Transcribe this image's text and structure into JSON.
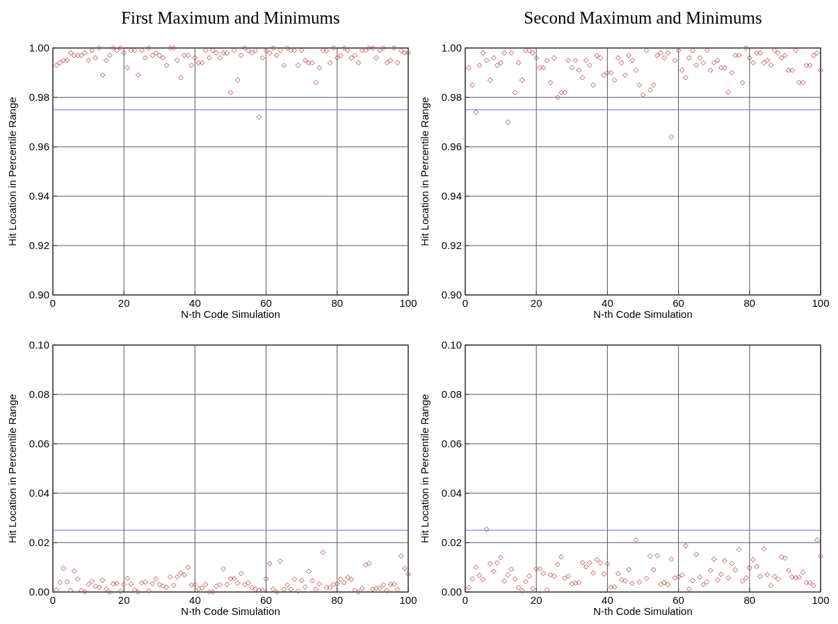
{
  "chart_data": [
    {
      "type": "scatter",
      "title": "First Maximum and Minimums",
      "xlabel": "N-th Code Simulation",
      "ylabel": "Hit Location in Percentile Range",
      "xlim": [
        0,
        100
      ],
      "xticks": [
        0,
        20,
        40,
        60,
        80,
        100
      ],
      "ylim": [
        0.9,
        1.0
      ],
      "yticks": [
        {
          "value": 0.9,
          "label": "0.90"
        },
        0.92,
        0.94,
        0.96,
        0.98,
        {
          "value": 1.0,
          "label": "1.00"
        }
      ],
      "grid": true,
      "marker": "diamond",
      "ref_lines": [
        {
          "axis": "y",
          "value": 0.975,
          "color": "#6b6bff"
        }
      ],
      "series": [
        {
          "color": "#c0504d",
          "x": [
            1,
            2,
            3,
            4,
            5,
            6,
            7,
            8,
            9,
            10,
            11,
            12,
            13,
            14,
            15,
            16,
            17,
            18,
            19,
            20,
            21,
            22,
            23,
            24,
            25,
            26,
            27,
            28,
            29,
            30,
            31,
            32,
            33,
            34,
            35,
            36,
            37,
            38,
            39,
            40,
            41,
            42,
            43,
            44,
            45,
            46,
            47,
            48,
            49,
            50,
            51,
            52,
            53,
            54,
            55,
            56,
            57,
            58,
            59,
            60,
            61,
            62,
            63,
            64,
            65,
            66,
            67,
            68,
            69,
            70,
            71,
            72,
            73,
            74,
            75,
            76,
            77,
            78,
            79,
            80,
            81,
            82,
            83,
            84,
            85,
            86,
            87,
            88,
            89,
            90,
            91,
            92,
            93,
            94,
            95,
            96,
            97,
            98,
            99,
            100
          ],
          "values": [
            0.993,
            0.994,
            0.995,
            0.995,
            0.998,
            0.997,
            0.997,
            0.997,
            0.998,
            0.995,
            0.999,
            0.996,
            1.0,
            0.989,
            0.995,
            0.997,
            1.0,
            0.999,
            1.0,
            0.998,
            0.992,
            0.999,
            0.999,
            0.989,
            0.999,
            0.996,
            1.0,
            0.997,
            0.998,
            0.997,
            0.996,
            0.993,
            1.0,
            1.0,
            0.995,
            0.988,
            0.997,
            0.997,
            0.993,
            0.996,
            0.994,
            0.994,
            0.999,
            0.996,
            0.999,
            0.998,
            0.996,
            0.998,
            0.998,
            0.982,
            0.999,
            0.987,
            0.997,
            1.0,
            0.999,
            0.998,
            0.999,
            0.972,
            0.996,
            0.999,
            0.998,
            1.0,
            0.997,
            0.999,
            0.993,
            1.0,
            0.999,
            0.999,
            0.993,
            0.999,
            0.995,
            0.994,
            0.994,
            0.986,
            0.992,
            0.999,
            0.999,
            0.994,
            1.0,
            0.996,
            0.997,
            1.0,
            0.999,
            0.996,
            0.997,
            0.994,
            0.999,
            0.999,
            1.0,
            1.0,
            0.996,
            0.999,
            1.0,
            0.994,
            0.995,
            1.0,
            0.994,
            0.999,
            0.998,
            0.998
          ]
        }
      ]
    },
    {
      "type": "scatter",
      "title": "Second Maximum and Minimums",
      "xlabel": "N-th Code Simulation",
      "ylabel": "Hit Location in Percentile Range",
      "xlim": [
        0,
        100
      ],
      "xticks": [
        0,
        20,
        40,
        60,
        80,
        100
      ],
      "ylim": [
        0.9,
        1.0
      ],
      "yticks": [
        {
          "value": 0.9,
          "label": "0.90"
        },
        0.92,
        0.94,
        0.96,
        0.98,
        {
          "value": 1.0,
          "label": "1.00"
        }
      ],
      "grid": true,
      "marker": "diamond",
      "ref_lines": [
        {
          "axis": "y",
          "value": 0.975,
          "color": "#6b6bff"
        }
      ],
      "series": [
        {
          "color": "#c0504d",
          "x": [
            1,
            2,
            3,
            4,
            5,
            6,
            7,
            8,
            9,
            10,
            11,
            12,
            13,
            14,
            15,
            16,
            17,
            18,
            19,
            20,
            21,
            22,
            23,
            24,
            25,
            26,
            27,
            28,
            29,
            30,
            31,
            32,
            33,
            34,
            35,
            36,
            37,
            38,
            39,
            40,
            41,
            42,
            43,
            44,
            45,
            46,
            47,
            48,
            49,
            50,
            51,
            52,
            53,
            54,
            55,
            56,
            57,
            58,
            59,
            60,
            61,
            62,
            63,
            64,
            65,
            66,
            67,
            68,
            69,
            70,
            71,
            72,
            73,
            74,
            75,
            76,
            77,
            78,
            79,
            80,
            81,
            82,
            83,
            84,
            85,
            86,
            87,
            88,
            89,
            90,
            91,
            92,
            93,
            94,
            95,
            96,
            97,
            98,
            99,
            100
          ],
          "values": [
            0.992,
            0.985,
            0.974,
            0.993,
            0.998,
            0.995,
            0.987,
            0.996,
            0.993,
            0.994,
            0.998,
            0.97,
            0.998,
            0.982,
            0.994,
            0.987,
            0.999,
            0.999,
            0.998,
            0.996,
            0.992,
            0.992,
            0.995,
            0.986,
            0.996,
            0.98,
            0.982,
            0.982,
            0.995,
            0.992,
            0.995,
            0.991,
            0.988,
            0.995,
            0.993,
            0.985,
            0.997,
            0.996,
            0.989,
            0.99,
            0.99,
            0.987,
            0.996,
            0.994,
            0.989,
            0.997,
            0.995,
            0.991,
            0.985,
            0.981,
            0.999,
            0.983,
            0.985,
            0.997,
            0.998,
            0.996,
            0.998,
            0.964,
            0.995,
            0.999,
            0.991,
            0.988,
            0.996,
            0.999,
            0.993,
            0.996,
            0.994,
            0.999,
            0.991,
            0.994,
            0.995,
            0.992,
            0.992,
            0.982,
            0.99,
            0.997,
            0.997,
            0.986,
            1.0,
            0.996,
            0.994,
            0.998,
            0.998,
            0.994,
            0.995,
            0.993,
            0.999,
            0.998,
            0.996,
            0.997,
            0.991,
            0.991,
            0.999,
            0.986,
            0.986,
            0.993,
            0.993,
            0.997,
            0.998,
            0.991
          ]
        }
      ]
    },
    {
      "type": "scatter",
      "xlabel": "N-th Code Simulation",
      "ylabel": "Hit Location in Percentile Range",
      "xlim": [
        0,
        100
      ],
      "xticks": [
        0,
        20,
        40,
        60,
        80,
        100
      ],
      "ylim": [
        0,
        0.1
      ],
      "yticks": [
        {
          "value": 0,
          "label": "0.00"
        },
        0.02,
        0.04,
        0.06,
        0.08,
        {
          "value": 0.1,
          "label": "0.10"
        }
      ],
      "grid": true,
      "marker": "diamond",
      "ref_lines": [
        {
          "axis": "y",
          "value": 0.025,
          "color": "#6b6bff"
        }
      ],
      "series": [
        {
          "color": "#c0504d",
          "x": [
            1,
            2,
            3,
            4,
            5,
            6,
            7,
            8,
            9,
            10,
            11,
            12,
            13,
            14,
            15,
            16,
            17,
            18,
            19,
            20,
            21,
            22,
            23,
            24,
            25,
            26,
            27,
            28,
            29,
            30,
            31,
            32,
            33,
            34,
            35,
            36,
            37,
            38,
            39,
            40,
            41,
            42,
            43,
            44,
            45,
            46,
            47,
            48,
            49,
            50,
            51,
            52,
            53,
            54,
            55,
            56,
            57,
            58,
            59,
            60,
            61,
            62,
            63,
            64,
            65,
            66,
            67,
            68,
            69,
            70,
            71,
            72,
            73,
            74,
            75,
            76,
            77,
            78,
            79,
            80,
            81,
            82,
            83,
            84,
            85,
            86,
            87,
            88,
            89,
            90,
            91,
            92,
            93,
            94,
            95,
            96,
            97,
            98,
            99,
            100
          ],
          "values": [
            0.0008,
            0.0038,
            0.0096,
            0.0041,
            0.0006,
            0.0085,
            0.0052,
            0.0006,
            0.0001,
            0.0031,
            0.0043,
            0.0023,
            0.0019,
            0.0048,
            0.0012,
            0.0,
            0.0033,
            0.0035,
            0.0003,
            0.0031,
            0.0055,
            0.0032,
            0.0009,
            0.0,
            0.0037,
            0.004,
            0.0005,
            0.0034,
            0.0053,
            0.003,
            0.0024,
            0.0019,
            0.0061,
            0.0027,
            0.0061,
            0.0077,
            0.007,
            0.01,
            0.0028,
            0.003,
            0.0012,
            0.0017,
            0.0031,
            0.0,
            0.0,
            0.0024,
            0.003,
            0.0094,
            0.003,
            0.0054,
            0.0054,
            0.0036,
            0.0075,
            0.003,
            0.0037,
            0.0018,
            0.0011,
            0.0007,
            0.0007,
            0.0054,
            0.0115,
            0.0012,
            0.0,
            0.0125,
            0.0011,
            0.0028,
            0.0011,
            0.0052,
            0.0004,
            0.0046,
            0.002,
            0.0083,
            0.0046,
            0.0011,
            0.0033,
            0.016,
            0.0018,
            0.0018,
            0.0031,
            0.0033,
            0.0052,
            0.0038,
            0.0059,
            0.0051,
            0.0007,
            0.0,
            0.0014,
            0.0109,
            0.0116,
            0.0012,
            0.0015,
            0.0015,
            0.0029,
            0.0005,
            0.0031,
            0.0031,
            0.001,
            0.0146,
            0.0096,
            0.0072
          ]
        }
      ]
    },
    {
      "type": "scatter",
      "xlabel": "N-th Code Simulation",
      "ylabel": "Hit Location in Percentile Range",
      "xlim": [
        0,
        100
      ],
      "xticks": [
        0,
        20,
        40,
        60,
        80,
        100
      ],
      "ylim": [
        0,
        0.1
      ],
      "yticks": [
        {
          "value": 0,
          "label": "0.00"
        },
        0.02,
        0.04,
        0.06,
        0.08,
        {
          "value": 0.1,
          "label": "0.10"
        }
      ],
      "grid": true,
      "marker": "diamond",
      "ref_lines": [
        {
          "axis": "y",
          "value": 0.025,
          "color": "#6b6bff"
        }
      ],
      "series": [
        {
          "color": "#c0504d",
          "x": [
            1,
            2,
            3,
            4,
            5,
            6,
            7,
            8,
            9,
            10,
            11,
            12,
            13,
            14,
            15,
            16,
            17,
            18,
            19,
            20,
            21,
            22,
            23,
            24,
            25,
            26,
            27,
            28,
            29,
            30,
            31,
            32,
            33,
            34,
            35,
            36,
            37,
            38,
            39,
            40,
            41,
            42,
            43,
            44,
            45,
            46,
            47,
            48,
            49,
            51,
            52,
            53,
            54,
            55,
            56,
            57,
            58,
            59,
            60,
            61,
            62,
            63,
            64,
            65,
            66,
            67,
            68,
            69,
            70,
            71,
            72,
            73,
            74,
            75,
            76,
            77,
            78,
            79,
            80,
            81,
            82,
            83,
            84,
            85,
            86,
            87,
            88,
            89,
            90,
            91,
            92,
            93,
            94,
            95,
            96,
            97,
            98,
            99,
            100
          ],
          "values": [
            0.0018,
            0.0053,
            0.01,
            0.0067,
            0.005,
            0.0254,
            0.0115,
            0.0084,
            0.0118,
            0.014,
            0.0045,
            0.0069,
            0.0092,
            0.0052,
            0.0018,
            0.0005,
            0.0042,
            0.0064,
            0.0014,
            0.0094,
            0.0094,
            0.0075,
            0.0008,
            0.0069,
            0.0064,
            0.0112,
            0.0142,
            0.0056,
            0.0064,
            0.0033,
            0.0036,
            0.0038,
            0.0119,
            0.0102,
            0.0118,
            0.0077,
            0.0131,
            0.0118,
            0.0073,
            0.0114,
            0.0019,
            0.002,
            0.0075,
            0.0049,
            0.0045,
            0.0091,
            0.0035,
            0.021,
            0.004,
            0.0055,
            0.0145,
            0.009,
            0.0147,
            0.0031,
            0.0038,
            0.0031,
            0.0133,
            0.0057,
            0.0061,
            0.0069,
            0.0187,
            0.0012,
            0.0047,
            0.0152,
            0.006,
            0.003,
            0.0041,
            0.0087,
            0.0133,
            0.0049,
            0.0072,
            0.0127,
            0.0057,
            0.0115,
            0.009,
            0.0172,
            0.0044,
            0.0057,
            0.0098,
            0.0131,
            0.0103,
            0.0063,
            0.0174,
            0.007,
            0.0026,
            0.0063,
            0.0052,
            0.0141,
            0.0137,
            0.0087,
            0.0061,
            0.0058,
            0.0059,
            0.008,
            0.0038,
            0.0038,
            0.0026,
            0.021,
            0.0144
          ]
        }
      ]
    }
  ]
}
